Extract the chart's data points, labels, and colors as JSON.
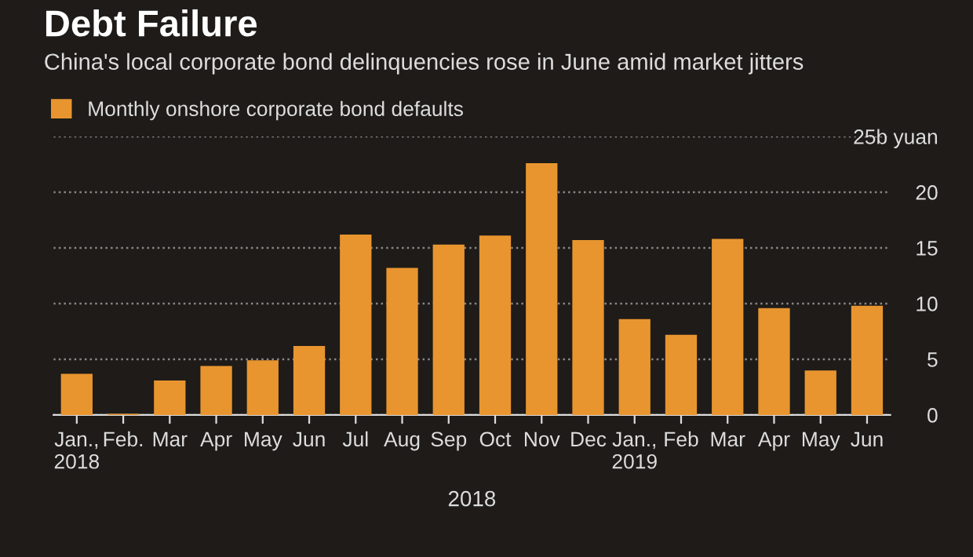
{
  "chart_data": {
    "type": "bar",
    "title": "Debt Failure",
    "subtitle": "China's local corporate bond delinquencies rose in June amid market jitters",
    "xlabel": "2018",
    "categories": [
      "Jan.,\n2018",
      "Feb.",
      "Mar",
      "Apr",
      "May",
      "Jun",
      "Jul",
      "Aug",
      "Sep",
      "Oct",
      "Nov",
      "Dec",
      "Jan.,\n2019",
      "Feb",
      "Mar",
      "Apr",
      "May",
      "Jun"
    ],
    "series": [
      {
        "name": "Monthly onshore corporate bond defaults",
        "color": "#e8952f",
        "values": [
          3.7,
          0.1,
          3.1,
          4.4,
          4.9,
          6.2,
          16.2,
          13.2,
          15.3,
          16.1,
          22.6,
          15.7,
          8.6,
          7.2,
          15.8,
          9.6,
          4.0,
          9.8
        ]
      }
    ],
    "ylim": [
      0,
      25
    ],
    "yticks": [
      0,
      5,
      10,
      15,
      20,
      {
        "value": 25,
        "label": "25b yuan"
      }
    ],
    "grid": "y",
    "legend": "top left"
  }
}
